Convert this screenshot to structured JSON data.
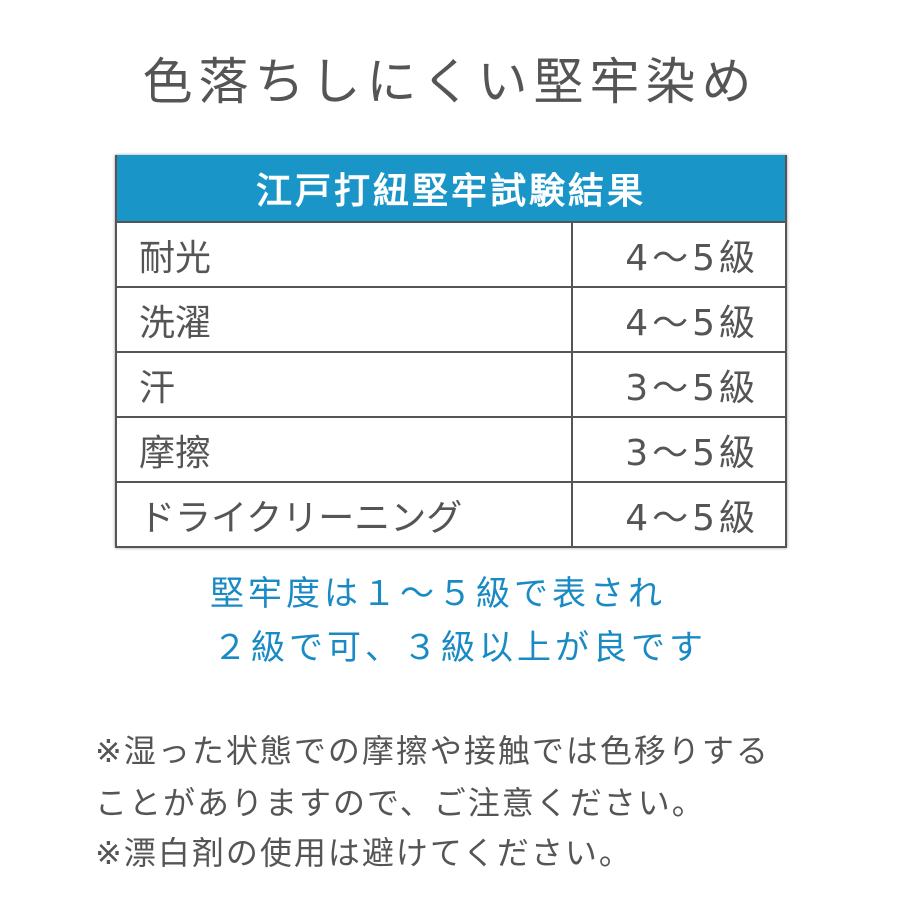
{
  "title": "色落ちしにくい堅牢染め",
  "table": {
    "header": "江戸打紐堅牢試験結果",
    "rows": [
      {
        "label": "耐光",
        "value": "4〜5級"
      },
      {
        "label": "洗濯",
        "value": "4〜5級"
      },
      {
        "label": "汗",
        "value": "3〜5級"
      },
      {
        "label": "摩擦",
        "value": "3〜5級"
      },
      {
        "label": "ドライクリーニング",
        "value": "4〜5級"
      }
    ]
  },
  "notes": [
    "堅牢度は１〜５級で表され",
    "２級で可、３級以上が良です"
  ],
  "footnotes": [
    "※湿った状態での摩擦や接触では色移りする",
    "ことがありますので、ご注意ください。",
    "※漂白剤の使用は避けてください。"
  ],
  "colors": {
    "header": "#1a95c8",
    "note_text": "#1a8ac4",
    "text": "#555555"
  }
}
